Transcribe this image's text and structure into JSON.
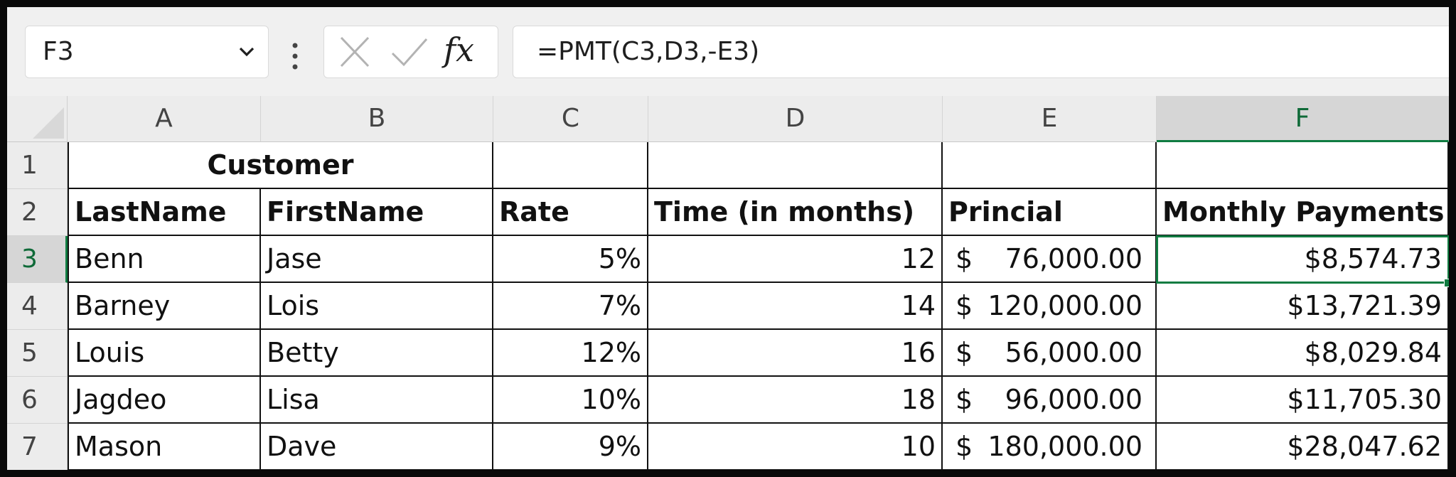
{
  "formula_bar": {
    "name_box": "F3",
    "formula": "=PMT(C3,D3,-E3)",
    "insert_function_label": "fx"
  },
  "columns": [
    "A",
    "B",
    "C",
    "D",
    "E",
    "F"
  ],
  "rows": [
    "1",
    "2",
    "3",
    "4",
    "5",
    "6",
    "7"
  ],
  "sheet": {
    "title": "Customer",
    "headers": [
      "LastName",
      "FirstName",
      "Rate",
      "Time (in months)",
      "Princial",
      "Monthly Payments"
    ],
    "data": [
      {
        "last": "Benn",
        "first": "Jase",
        "rate": "5%",
        "time": "12",
        "principal": "76,000.00",
        "payment": "$8,574.73"
      },
      {
        "last": "Barney",
        "first": "Lois",
        "rate": "7%",
        "time": "14",
        "principal": "120,000.00",
        "payment": "$13,721.39"
      },
      {
        "last": "Louis",
        "first": "Betty",
        "rate": "12%",
        "time": "16",
        "principal": "56,000.00",
        "payment": "$8,029.84"
      },
      {
        "last": "Jagdeo",
        "first": "Lisa",
        "rate": "10%",
        "time": "18",
        "principal": "96,000.00",
        "payment": "$11,705.30"
      },
      {
        "last": "Mason",
        "first": "Dave",
        "rate": "9%",
        "time": "10",
        "principal": "180,000.00",
        "payment": "$28,047.62"
      }
    ],
    "currency_symbol": "$"
  },
  "selection": {
    "column": "F",
    "row": "3"
  },
  "colors": {
    "accent": "#107c41",
    "header_bg": "#ececec",
    "active_header_bg": "#d6d6d6",
    "border": "#111111"
  }
}
